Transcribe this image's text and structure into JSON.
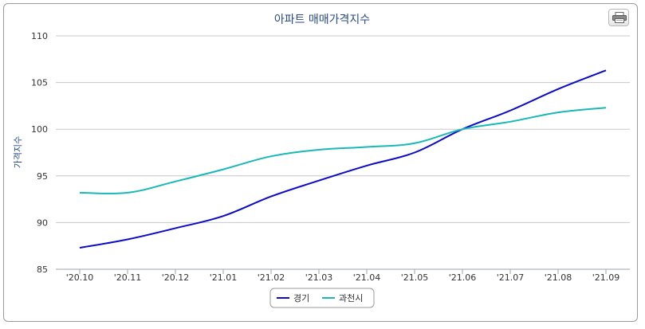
{
  "chart_data": {
    "type": "line",
    "title": "아파트 매매가격지수",
    "xlabel": "",
    "ylabel": "가격지수",
    "categories": [
      "'20.10",
      "'20.11",
      "'20.12",
      "'21.01",
      "'21.02",
      "'21.03",
      "'21.04",
      "'21.05",
      "'21.06",
      "'21.07",
      "'21.08",
      "'21.09"
    ],
    "ylim": [
      85,
      110
    ],
    "yticks": [
      85,
      90,
      95,
      100,
      105,
      110
    ],
    "grid": true,
    "legend_position": "bottom",
    "series": [
      {
        "name": "경기",
        "color": "#0a0acc",
        "values": [
          87.3,
          88.2,
          89.4,
          90.7,
          92.8,
          94.5,
          96.1,
          97.5,
          100.0,
          102.0,
          104.3,
          106.3
        ]
      },
      {
        "name": "과천시",
        "color": "#18b8b8",
        "values": [
          93.2,
          93.2,
          94.4,
          95.7,
          97.1,
          97.8,
          98.1,
          98.5,
          100.0,
          100.8,
          101.8,
          102.3
        ]
      }
    ]
  },
  "toolbar": {
    "print_icon": "printer-icon"
  }
}
